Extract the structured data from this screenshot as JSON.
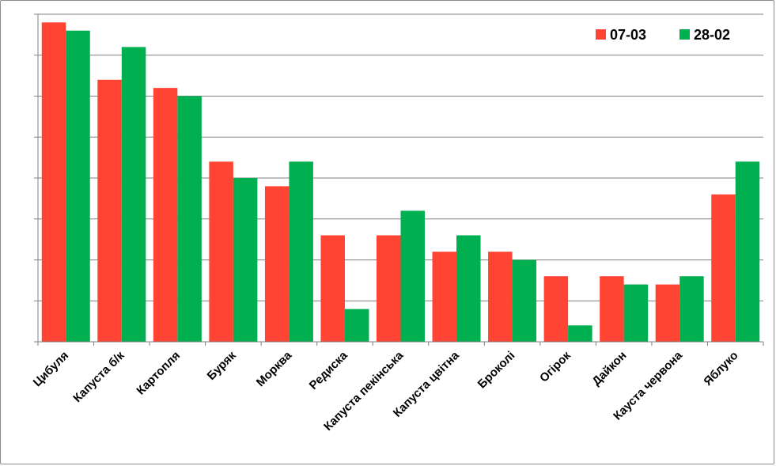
{
  "chart_data": {
    "type": "bar",
    "title": "",
    "xlabel": "",
    "ylabel": "",
    "categories": [
      "Цибуля",
      "Капуста б/к",
      "Картопля",
      "Буряк",
      "Морква",
      "Редиска",
      "Капуста пекінська",
      "Капуста цвітна",
      "Броколі",
      "Огірок",
      "Дайкон",
      "Кауста червона",
      "Яблуко"
    ],
    "series": [
      {
        "name": "07-03",
        "color": "#ff4433",
        "values": [
          7.8,
          6.4,
          6.2,
          4.4,
          3.8,
          2.6,
          2.6,
          2.2,
          2.2,
          1.6,
          1.6,
          1.4,
          3.6
        ]
      },
      {
        "name": "28-02",
        "color": "#00b050",
        "values": [
          7.6,
          7.2,
          6.0,
          4.0,
          4.4,
          0.8,
          3.2,
          2.6,
          2.0,
          0.4,
          1.4,
          1.6,
          4.4
        ]
      }
    ],
    "ylim": [
      0,
      8
    ],
    "yticks_shown": false,
    "grid": true,
    "legend": "top-right"
  }
}
